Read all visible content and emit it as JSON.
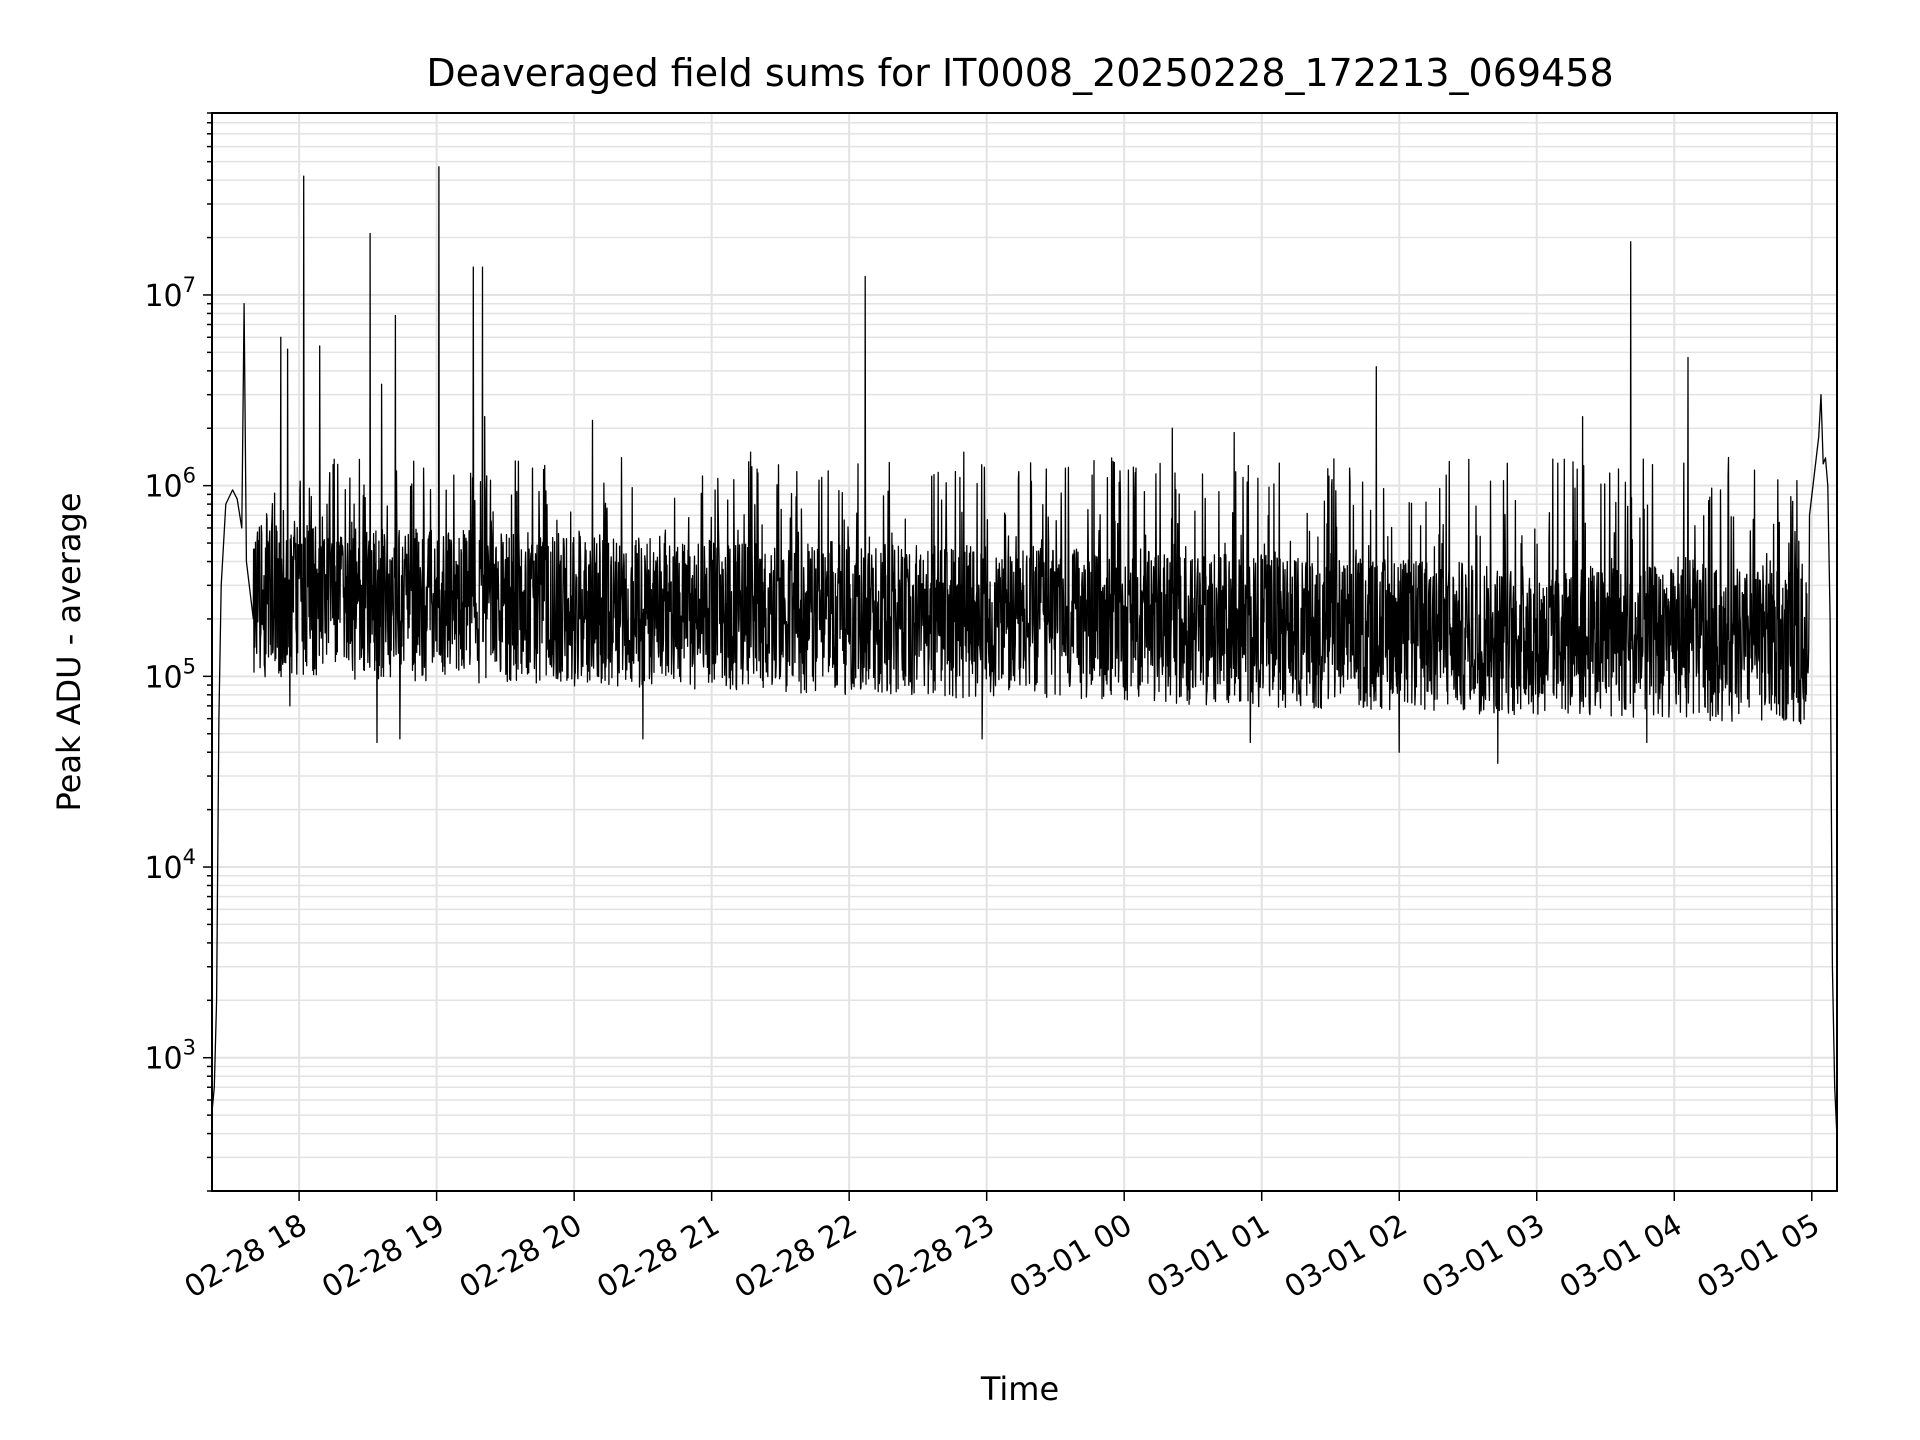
{
  "chart_data": {
    "type": "line",
    "title": "Deaveraged field sums for IT0008_20250228_172213_069458",
    "xlabel": "Time",
    "ylabel": "Peak ADU - average",
    "x_ticks": [
      "02-28 18",
      "02-28 19",
      "02-28 20",
      "02-28 21",
      "02-28 22",
      "02-28 23",
      "03-01 00",
      "03-01 01",
      "03-01 02",
      "03-01 03",
      "03-01 04",
      "03-01 05"
    ],
    "xlim": [
      "2025-02-28 17:22",
      "2025-03-01 05:11"
    ],
    "y_scale": "log",
    "ylim": [
      200,
      90000000
    ],
    "y_ticks": [
      {
        "base": "10",
        "exp": "3",
        "value": 1000
      },
      {
        "base": "10",
        "exp": "4",
        "value": 10000
      },
      {
        "base": "10",
        "exp": "5",
        "value": 100000
      },
      {
        "base": "10",
        "exp": "6",
        "value": 1000000
      },
      {
        "base": "10",
        "exp": "7",
        "value": 10000000
      }
    ],
    "grid": true,
    "series": [
      {
        "color": "#000000",
        "points": [
          [
            "2025-02-28 17:22",
            520
          ],
          [
            "2025-02-28 17:23",
            700
          ],
          [
            "2025-02-28 17:24",
            2000
          ],
          [
            "2025-02-28 17:25",
            60000
          ],
          [
            "2025-02-28 17:26",
            300000
          ],
          [
            "2025-02-28 17:28",
            800000
          ],
          [
            "2025-02-28 17:31",
            950000
          ],
          [
            "2025-02-28 17:33",
            850000
          ],
          [
            "2025-02-28 17:35",
            600000
          ],
          [
            "2025-02-28 17:36",
            9000000
          ],
          [
            "2025-02-28 17:37",
            400000
          ],
          [
            "2025-02-28 17:40",
            200000
          ],
          [
            "2025-02-28 17:52",
            6000000
          ],
          [
            "2025-02-28 17:53",
            200000
          ],
          [
            "2025-02-28 17:55",
            5200000
          ],
          [
            "2025-02-28 17:56",
            70000
          ],
          [
            "2025-02-28 18:02",
            42000000
          ],
          [
            "2025-02-28 18:03",
            150000
          ],
          [
            "2025-02-28 18:09",
            5400000
          ],
          [
            "2025-02-28 18:10",
            250000
          ],
          [
            "2025-02-28 18:24",
            800000
          ],
          [
            "2025-02-28 18:31",
            21000000
          ],
          [
            "2025-02-28 18:32",
            300000
          ],
          [
            "2025-02-28 18:34",
            45000
          ],
          [
            "2025-02-28 18:36",
            3400000
          ],
          [
            "2025-02-28 18:37",
            200000
          ],
          [
            "2025-02-28 18:42",
            7800000
          ],
          [
            "2025-02-28 18:43",
            200000
          ],
          [
            "2025-02-28 18:44",
            47000
          ],
          [
            "2025-02-28 19:01",
            47000000
          ],
          [
            "2025-02-28 19:02",
            200000
          ],
          [
            "2025-02-28 19:16",
            14000000
          ],
          [
            "2025-02-28 19:17",
            150000
          ],
          [
            "2025-02-28 19:20",
            14000000
          ],
          [
            "2025-02-28 19:21",
            2300000
          ],
          [
            "2025-02-28 19:22",
            200000
          ],
          [
            "2025-02-28 19:40",
            150000
          ],
          [
            "2025-02-28 20:08",
            2200000
          ],
          [
            "2025-02-28 20:09",
            150000
          ],
          [
            "2025-02-28 20:30",
            47000
          ],
          [
            "2025-02-28 20:32",
            200000
          ],
          [
            "2025-02-28 21:00",
            300000
          ],
          [
            "2025-02-28 21:17",
            1500000
          ],
          [
            "2025-02-28 21:18",
            200000
          ],
          [
            "2025-02-28 21:30",
            100000
          ],
          [
            "2025-02-28 21:50",
            200000
          ],
          [
            "2025-02-28 22:07",
            12500000
          ],
          [
            "2025-02-28 22:08",
            150000
          ],
          [
            "2025-02-28 22:20",
            250000
          ],
          [
            "2025-02-28 22:50",
            1500000
          ],
          [
            "2025-02-28 22:51",
            120000
          ],
          [
            "2025-02-28 22:58",
            47000
          ],
          [
            "2025-02-28 23:20",
            150000
          ],
          [
            "2025-02-28 23:50",
            200000
          ],
          [
            "2025-03-01 00:21",
            2000000
          ],
          [
            "2025-03-01 00:22",
            120000
          ],
          [
            "2025-03-01 00:48",
            1900000
          ],
          [
            "2025-03-01 00:49",
            100000
          ],
          [
            "2025-03-01 00:55",
            45000
          ],
          [
            "2025-03-01 01:20",
            150000
          ],
          [
            "2025-03-01 01:50",
            4200000
          ],
          [
            "2025-03-01 01:51",
            100000
          ],
          [
            "2025-03-01 02:00",
            40000
          ],
          [
            "2025-03-01 02:30",
            120000
          ],
          [
            "2025-03-01 02:43",
            35000
          ],
          [
            "2025-03-01 03:00",
            120000
          ],
          [
            "2025-03-01 03:20",
            2300000
          ],
          [
            "2025-03-01 03:21",
            100000
          ],
          [
            "2025-03-01 03:41",
            19000000
          ],
          [
            "2025-03-01 03:42",
            120000
          ],
          [
            "2025-03-01 03:48",
            45000
          ],
          [
            "2025-03-01 04:06",
            4700000
          ],
          [
            "2025-03-01 04:07",
            150000
          ],
          [
            "2025-03-01 04:40",
            300000
          ],
          [
            "2025-03-01 04:50",
            500000
          ],
          [
            "2025-03-01 04:59",
            700000
          ],
          [
            "2025-03-01 05:03",
            1800000
          ],
          [
            "2025-03-01 05:04",
            3000000
          ],
          [
            "2025-03-01 05:05",
            1300000
          ],
          [
            "2025-03-01 05:06",
            1400000
          ],
          [
            "2025-03-01 05:07",
            1000000
          ],
          [
            "2025-03-01 05:08",
            200000
          ],
          [
            "2025-03-01 05:09",
            3000
          ],
          [
            "2025-03-01 05:10",
            700
          ],
          [
            "2025-03-01 05:11",
            380
          ]
        ]
      }
    ]
  }
}
